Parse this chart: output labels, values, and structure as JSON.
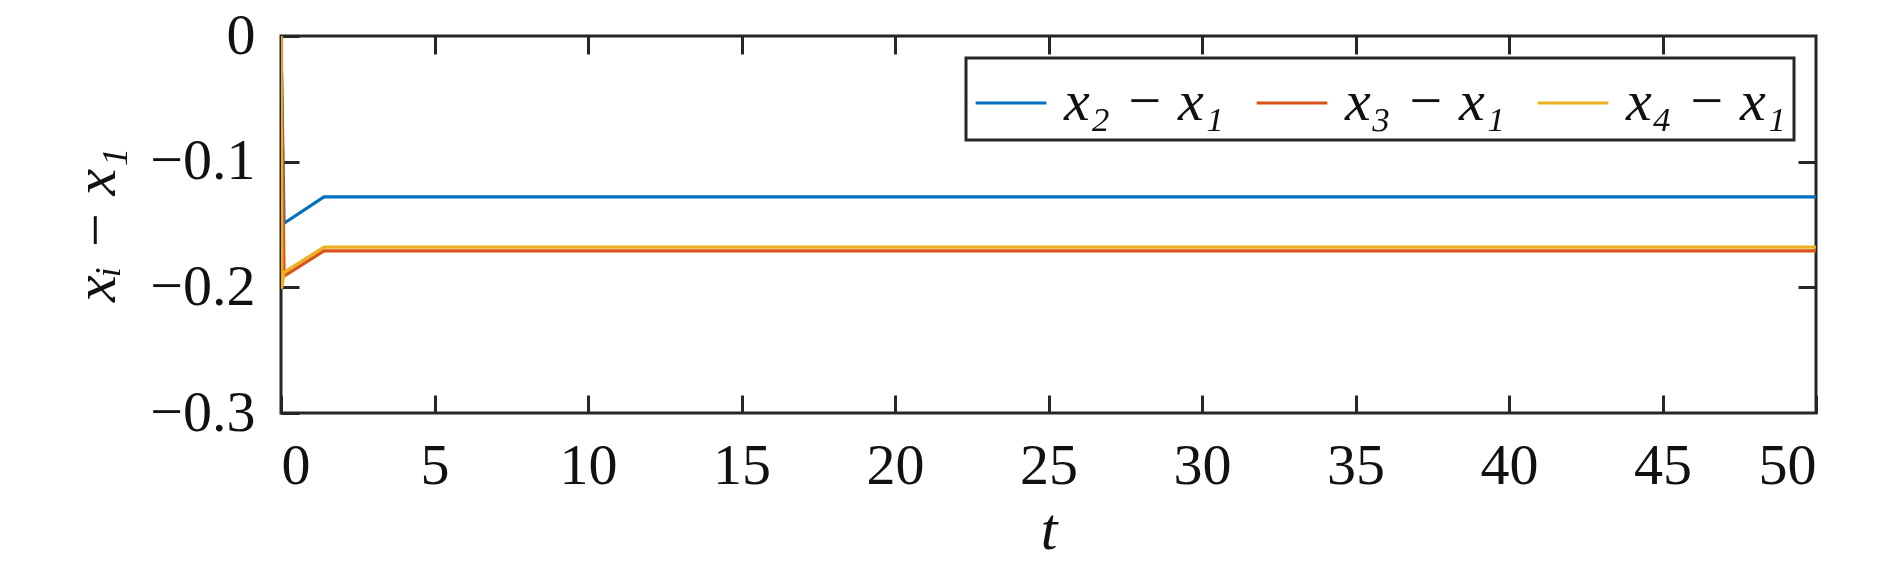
{
  "chart_data": {
    "type": "line",
    "xlabel": "t",
    "ylabel": "xᵢ − x₁",
    "xlim": [
      0,
      50
    ],
    "xticks": [
      0,
      5,
      10,
      15,
      20,
      25,
      30,
      35,
      40,
      45,
      50
    ],
    "ylim": [
      -0.3,
      0
    ],
    "yticks": [
      -0.3,
      -0.2,
      -0.1,
      0
    ],
    "grid": false,
    "legend": "top right",
    "line_style": "solid",
    "series": [
      {
        "name": "x₂ − x₁",
        "color": "#0072bd",
        "x": [
          0,
          0.1,
          1.4,
          50
        ],
        "values": [
          0,
          -0.149,
          -0.128,
          -0.128
        ]
      },
      {
        "name": "x₃ − x₁",
        "color": "#d95319",
        "x": [
          0,
          0.1,
          1.4,
          50
        ],
        "values": [
          0,
          -0.191,
          -0.171,
          -0.171
        ]
      },
      {
        "name": "x₄ − x₁",
        "color": "#edb120",
        "x": [
          0,
          0.03,
          0.1,
          1.4,
          50
        ],
        "values": [
          0,
          -0.2,
          -0.188,
          -0.168,
          -0.168
        ]
      }
    ]
  }
}
